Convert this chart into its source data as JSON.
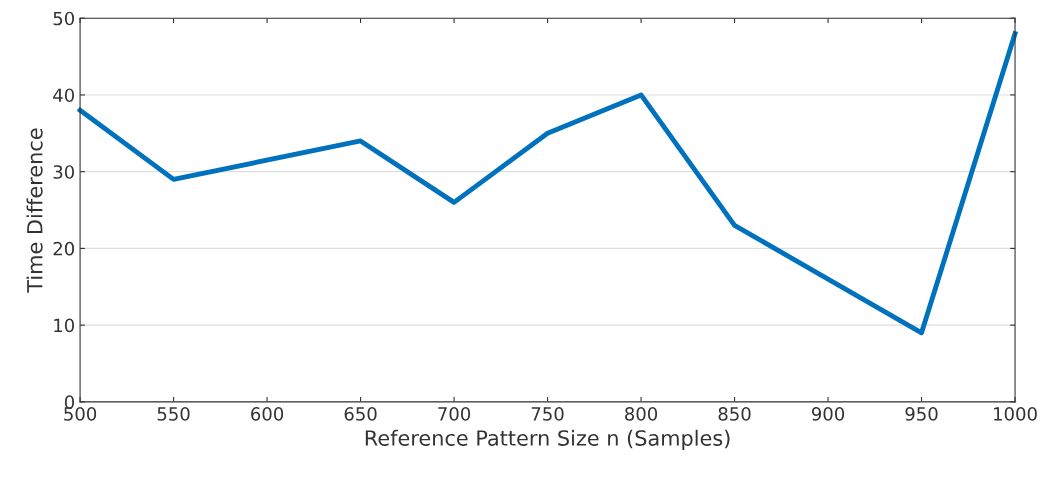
{
  "chart_data": {
    "type": "line",
    "xlabel": "Reference Pattern Size n (Samples)",
    "ylabel": "Time Difference",
    "x": [
      500,
      550,
      650,
      700,
      750,
      800,
      850,
      950,
      1000
    ],
    "series": [
      {
        "color": "#0072bd",
        "values": [
          38,
          29,
          34,
          26,
          35,
          40,
          23,
          9,
          48
        ]
      }
    ],
    "xlim": [
      500,
      1000
    ],
    "xticks": [
      500,
      550,
      600,
      650,
      700,
      750,
      800,
      850,
      900,
      950,
      1000
    ],
    "ylim": [
      0,
      50
    ],
    "yticks": [
      0,
      10,
      20,
      30,
      40,
      50
    ],
    "grid": "y",
    "marker": "none",
    "line_style": "solid"
  }
}
